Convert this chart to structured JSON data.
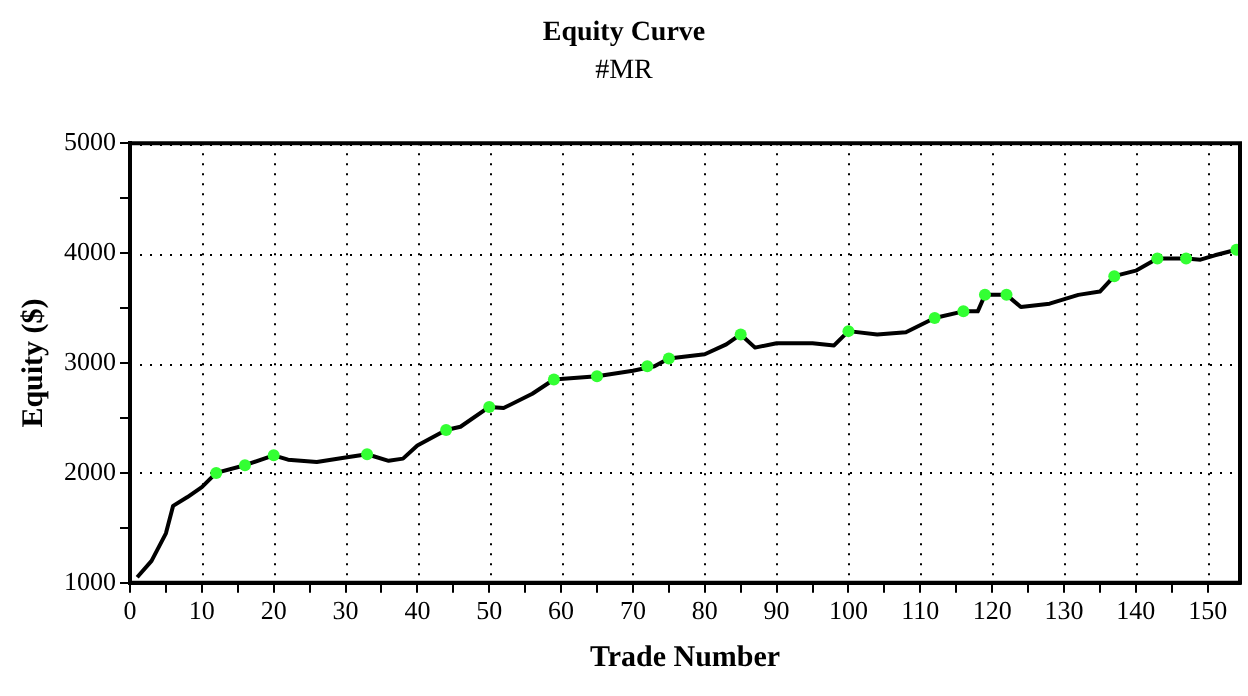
{
  "chart_data": {
    "type": "line",
    "title": "Equity Curve",
    "subtitle": "#MR",
    "xlabel": "Trade Number",
    "ylabel": "Equity ($)",
    "xlim": [
      0,
      154.5
    ],
    "ylim": [
      1000,
      5000
    ],
    "xticks": [
      0,
      {
        "value": 5,
        "label": null
      },
      10,
      {
        "value": 15,
        "label": null
      },
      20,
      {
        "value": 25,
        "label": null
      },
      30,
      {
        "value": 35,
        "label": null
      },
      40,
      {
        "value": 45,
        "label": null
      },
      50,
      {
        "value": 55,
        "label": null
      },
      60,
      {
        "value": 65,
        "label": null
      },
      70,
      {
        "value": 75,
        "label": null
      },
      80,
      {
        "value": 85,
        "label": null
      },
      90,
      {
        "value": 95,
        "label": null
      },
      100,
      {
        "value": 105,
        "label": null
      },
      110,
      {
        "value": 115,
        "label": null
      },
      120,
      {
        "value": 125,
        "label": null
      },
      130,
      {
        "value": 135,
        "label": null
      },
      140,
      {
        "value": 145,
        "label": null
      },
      150
    ],
    "yticks": [
      1000,
      {
        "value": 1500,
        "label": null
      },
      2000,
      {
        "value": 2500,
        "label": null
      },
      3000,
      {
        "value": 3500,
        "label": null
      },
      4000,
      {
        "value": 4500,
        "label": null
      },
      5000
    ],
    "grid": true,
    "legend": false,
    "series": [
      {
        "color": "#000000",
        "marker": "none",
        "line_style": "solid",
        "x": [
          1,
          3,
          5,
          6,
          8,
          10,
          12,
          16,
          20,
          22,
          26,
          30,
          33,
          36,
          38,
          40,
          44,
          46,
          50,
          52,
          56,
          59,
          65,
          70,
          73,
          75,
          80,
          83,
          85,
          87,
          90,
          95,
          98,
          100,
          104,
          108,
          112,
          116,
          118,
          119,
          122,
          124,
          128,
          132,
          135,
          137,
          140,
          143,
          147,
          149,
          151,
          154
        ],
        "values": [
          1050,
          1200,
          1450,
          1700,
          1780,
          1870,
          2000,
          2070,
          2160,
          2120,
          2100,
          2140,
          2170,
          2110,
          2130,
          2250,
          2390,
          2420,
          2600,
          2590,
          2720,
          2850,
          2880,
          2930,
          2970,
          3040,
          3080,
          3170,
          3260,
          3140,
          3180,
          3180,
          3160,
          3290,
          3260,
          3280,
          3410,
          3470,
          3470,
          3620,
          3620,
          3510,
          3540,
          3620,
          3650,
          3790,
          3840,
          3950,
          3950,
          3940,
          3980,
          4030
        ]
      },
      {
        "type": "scatter",
        "color": "#33ff33",
        "marker": "circle",
        "x": [
          12,
          16,
          20,
          33,
          44,
          50,
          59,
          65,
          72,
          75,
          85,
          100,
          112,
          116,
          119,
          122,
          137,
          143,
          147,
          154
        ],
        "values": [
          2000,
          2070,
          2160,
          2170,
          2390,
          2600,
          2850,
          2880,
          2970,
          3040,
          3260,
          3290,
          3410,
          3470,
          3620,
          3620,
          3790,
          3950,
          3950,
          4030
        ]
      }
    ]
  }
}
